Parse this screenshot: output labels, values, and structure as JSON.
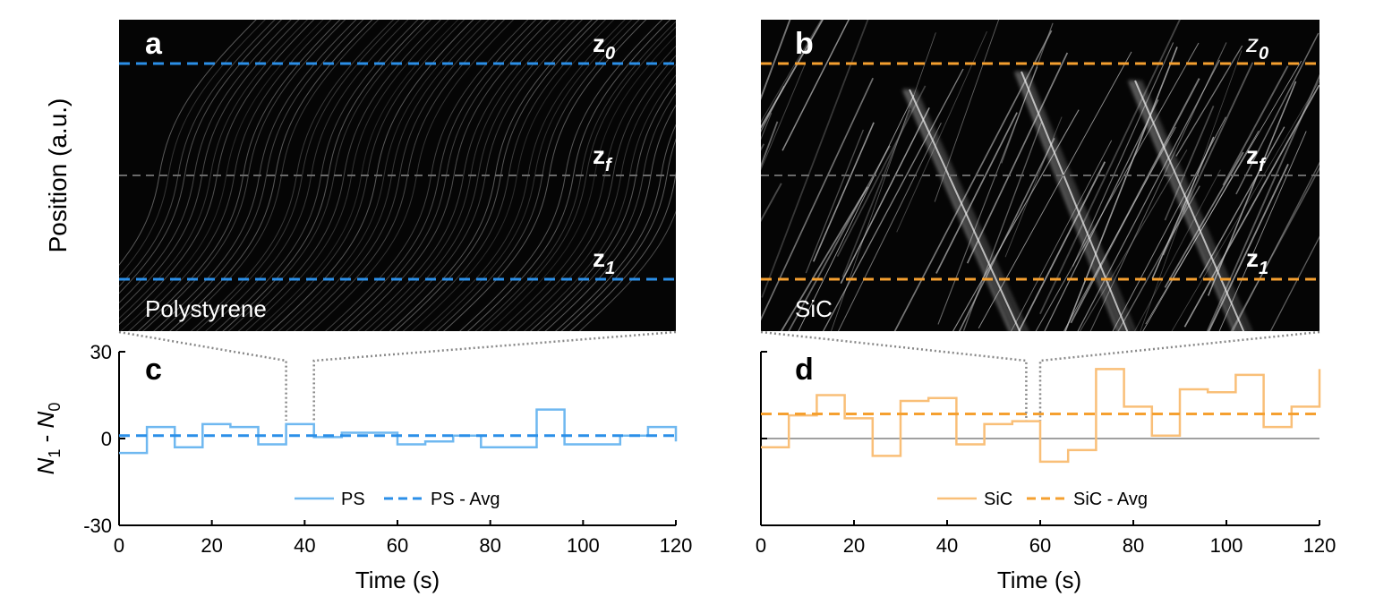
{
  "figure": {
    "position_axis_label": "Position (a.u.)"
  },
  "panels": [
    {
      "id": "a",
      "letter": "a",
      "material_label": "Polystyrene",
      "line_labels": {
        "z0": "z",
        "z0_sub": "0",
        "zf": "z",
        "zf_sub": "f",
        "z1": "z",
        "z1_sub": "1"
      },
      "line_color": "#2b8fe8",
      "mid_line_color": "#6a6a6a"
    },
    {
      "id": "b",
      "letter": "b",
      "material_label": "SiC",
      "line_labels": {
        "z0": "z",
        "z0_sub": "0",
        "zf": "z",
        "zf_sub": "f",
        "z1": "z",
        "z1_sub": "1"
      },
      "line_color": "#f5a030",
      "mid_line_color": "#6a6a6a"
    }
  ],
  "colors": {
    "ps_step": "#6fb8f0",
    "ps_avg": "#2b8fe8",
    "sic_step": "#f9bf78",
    "sic_avg": "#f5a030",
    "zoom_connector": "#888888"
  },
  "chart_data": [
    {
      "type": "line",
      "panel": "c",
      "letter": "c",
      "xlabel": "Time (s)",
      "ylabel_main": "N",
      "ylabel_sub1": "1",
      "ylabel_mid": " - ",
      "ylabel_main2": "N",
      "ylabel_sub2": "0",
      "xlim": [
        0,
        120
      ],
      "ylim": [
        -30,
        30
      ],
      "xticks": [
        0,
        20,
        40,
        60,
        80,
        100,
        120
      ],
      "yticks": [
        30,
        0,
        -30
      ],
      "zoom_window": [
        36,
        42
      ],
      "legend": {
        "position": "bottom-center",
        "entries": [
          "PS",
          "PS - Avg"
        ]
      },
      "series": [
        {
          "name": "PS",
          "style": "step",
          "x": [
            0,
            6,
            12,
            18,
            24,
            30,
            36,
            42,
            48,
            54,
            60,
            66,
            72,
            78,
            84,
            90,
            96,
            102,
            108,
            114,
            120
          ],
          "values": [
            -5,
            4,
            -3,
            5,
            4,
            -2,
            5,
            0.5,
            2,
            2,
            -2,
            -1,
            1,
            -3,
            -3,
            10,
            -2,
            -2,
            1,
            4,
            -1
          ]
        },
        {
          "name": "PS - Avg",
          "style": "dashed",
          "x": [
            0,
            120
          ],
          "values": [
            1,
            1
          ]
        }
      ]
    },
    {
      "type": "line",
      "panel": "d",
      "letter": "d",
      "xlabel": "Time (s)",
      "xlim": [
        0,
        120
      ],
      "ylim": [
        -30,
        30
      ],
      "xticks": [
        0,
        20,
        40,
        60,
        80,
        100,
        120
      ],
      "yticks": [
        30,
        0,
        -30
      ],
      "zoom_window": [
        57,
        60
      ],
      "legend": {
        "position": "bottom-center",
        "entries": [
          "SiC",
          "SiC - Avg"
        ]
      },
      "series": [
        {
          "name": "SiC",
          "style": "step",
          "x": [
            0,
            6,
            12,
            18,
            24,
            30,
            36,
            42,
            48,
            54,
            60,
            66,
            72,
            78,
            84,
            90,
            96,
            102,
            108,
            114,
            120
          ],
          "values": [
            -3,
            8,
            15,
            7,
            -6,
            13,
            14,
            -2,
            5,
            6,
            -8,
            -4,
            24,
            11,
            1,
            17,
            16,
            22,
            4,
            11,
            24
          ]
        },
        {
          "name": "SiC - Avg",
          "style": "dashed",
          "x": [
            0,
            120
          ],
          "values": [
            8.5,
            8.5
          ]
        }
      ]
    }
  ]
}
